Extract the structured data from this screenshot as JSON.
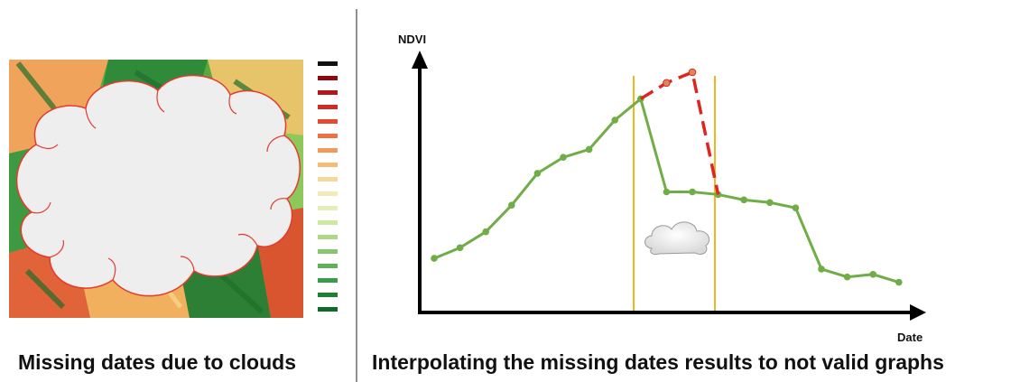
{
  "left_panel": {
    "caption": "Missing dates due to clouds",
    "colors": {
      "cloud_fill": "#eeeeee",
      "cloud_outline": "#e53a2e",
      "legend": [
        "#111111",
        "#8e0a12",
        "#b3161b",
        "#d02c25",
        "#e34a30",
        "#ee7043",
        "#f29a5a",
        "#f5bb79",
        "#f5d99a",
        "#f2ebb7",
        "#e4efb7",
        "#cde9a2",
        "#acd887",
        "#86c66e",
        "#5fb257",
        "#379c45",
        "#1c8135",
        "#0e6a2b"
      ]
    }
  },
  "right_panel": {
    "caption": "Interpolating the missing dates results to not valid graphs",
    "colors": {
      "observed_line": "#70ad47",
      "interpolated_line": "#e0241f",
      "window_lines": "#f2b61c",
      "axes": "#000000"
    }
  },
  "chart_data": {
    "type": "line",
    "xlabel": "Date",
    "ylabel": "NDVI",
    "series": [
      {
        "values": [
          0.2,
          0.24,
          0.3,
          0.4,
          0.52,
          0.58,
          0.61,
          0.72,
          0.8,
          0.45,
          0.45,
          0.44,
          0.42,
          0.41,
          0.39,
          0.16,
          0.13,
          0.14,
          0.11
        ]
      },
      {
        "values": [
          0.8,
          0.86,
          0.9,
          0.44
        ]
      }
    ],
    "cloud_window": [
      "start",
      "end"
    ]
  }
}
